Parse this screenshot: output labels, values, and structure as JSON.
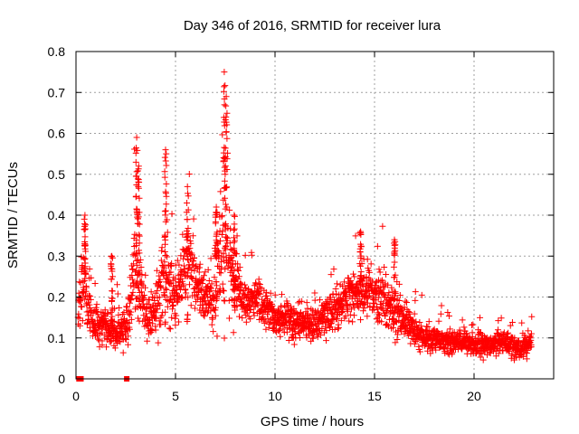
{
  "chart_data": {
    "type": "scatter",
    "title": "Day 346 of 2016, SRMTID for receiver lura",
    "xlabel": "GPS time / hours",
    "ylabel": "SRMTID / TECUs",
    "xlim": [
      0,
      24
    ],
    "ylim": [
      0,
      0.8
    ],
    "xticks": [
      "0",
      "5",
      "10",
      "15",
      "20"
    ],
    "yticks": [
      "0",
      "0.1",
      "0.2",
      "0.3",
      "0.4",
      "0.5",
      "0.6",
      "0.7",
      "0.8"
    ],
    "grid": true,
    "marker": "plus",
    "color": "#ff0000",
    "zero_markers_x": [
      0.15,
      0.25,
      2.55
    ],
    "envelope": [
      {
        "t": 0.0,
        "mean": 0.1,
        "spread": 0.05
      },
      {
        "t": 0.35,
        "mean": 0.25,
        "spread": 0.14
      },
      {
        "t": 0.8,
        "mean": 0.14,
        "spread": 0.07
      },
      {
        "t": 1.3,
        "mean": 0.13,
        "spread": 0.06
      },
      {
        "t": 2.0,
        "mean": 0.11,
        "spread": 0.06
      },
      {
        "t": 2.6,
        "mean": 0.13,
        "spread": 0.07
      },
      {
        "t": 3.0,
        "mean": 0.3,
        "spread": 0.2
      },
      {
        "t": 3.5,
        "mean": 0.15,
        "spread": 0.07
      },
      {
        "t": 4.0,
        "mean": 0.16,
        "spread": 0.08
      },
      {
        "t": 4.5,
        "mean": 0.27,
        "spread": 0.2
      },
      {
        "t": 5.0,
        "mean": 0.18,
        "spread": 0.08
      },
      {
        "t": 5.6,
        "mean": 0.3,
        "spread": 0.12
      },
      {
        "t": 6.2,
        "mean": 0.22,
        "spread": 0.09
      },
      {
        "t": 6.8,
        "mean": 0.18,
        "spread": 0.08
      },
      {
        "t": 7.4,
        "mean": 0.34,
        "spread": 0.3
      },
      {
        "t": 7.9,
        "mean": 0.26,
        "spread": 0.11
      },
      {
        "t": 8.5,
        "mean": 0.18,
        "spread": 0.07
      },
      {
        "t": 9.0,
        "mean": 0.2,
        "spread": 0.07
      },
      {
        "t": 10.0,
        "mean": 0.15,
        "spread": 0.06
      },
      {
        "t": 11.0,
        "mean": 0.14,
        "spread": 0.06
      },
      {
        "t": 12.0,
        "mean": 0.13,
        "spread": 0.06
      },
      {
        "t": 12.8,
        "mean": 0.16,
        "spread": 0.08
      },
      {
        "t": 13.6,
        "mean": 0.2,
        "spread": 0.07
      },
      {
        "t": 14.3,
        "mean": 0.22,
        "spread": 0.1
      },
      {
        "t": 15.0,
        "mean": 0.21,
        "spread": 0.09
      },
      {
        "t": 15.8,
        "mean": 0.18,
        "spread": 0.1
      },
      {
        "t": 16.5,
        "mean": 0.14,
        "spread": 0.06
      },
      {
        "t": 17.5,
        "mean": 0.1,
        "spread": 0.05
      },
      {
        "t": 18.5,
        "mean": 0.09,
        "spread": 0.04
      },
      {
        "t": 19.5,
        "mean": 0.09,
        "spread": 0.04
      },
      {
        "t": 20.5,
        "mean": 0.08,
        "spread": 0.04
      },
      {
        "t": 21.5,
        "mean": 0.09,
        "spread": 0.04
      },
      {
        "t": 22.3,
        "mean": 0.07,
        "spread": 0.04
      },
      {
        "t": 22.8,
        "mean": 0.09,
        "spread": 0.04
      }
    ],
    "spikes": [
      {
        "t": 0.45,
        "max": 0.4
      },
      {
        "t": 1.8,
        "max": 0.3
      },
      {
        "t": 3.05,
        "max": 0.59
      },
      {
        "t": 3.15,
        "max": 0.52
      },
      {
        "t": 4.5,
        "max": 0.56
      },
      {
        "t": 5.6,
        "max": 0.47
      },
      {
        "t": 7.05,
        "max": 0.42
      },
      {
        "t": 7.45,
        "max": 0.75
      },
      {
        "t": 7.55,
        "max": 0.69
      },
      {
        "t": 7.95,
        "max": 0.4
      },
      {
        "t": 14.3,
        "max": 0.36
      },
      {
        "t": 16.0,
        "max": 0.34
      }
    ]
  }
}
